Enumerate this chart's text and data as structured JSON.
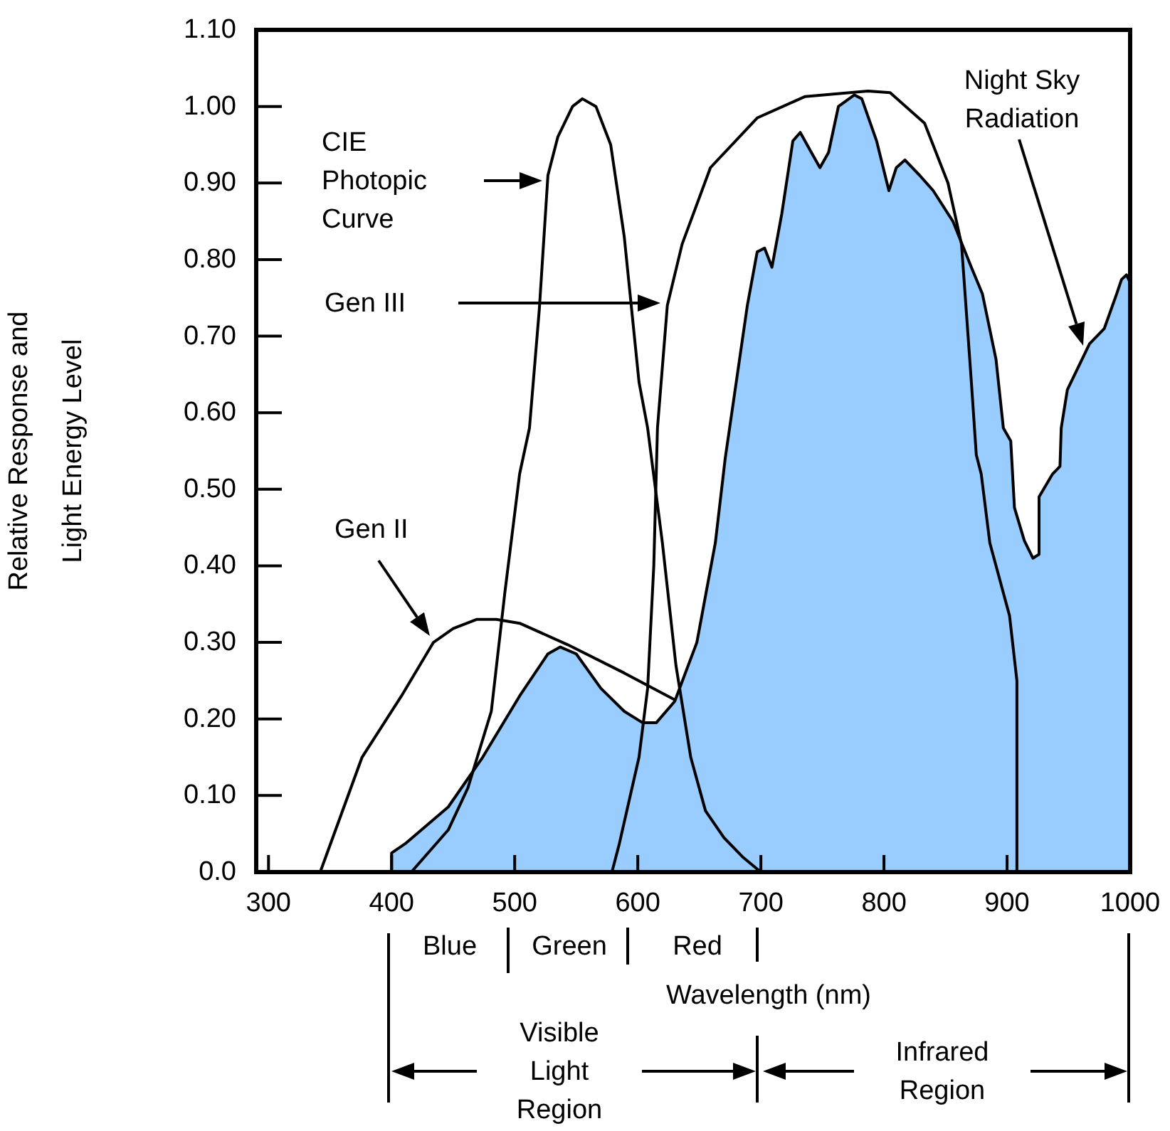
{
  "chart_data": {
    "type": "line",
    "xlabel": "Wavelength (nm)",
    "ylabel": "Relative Response and\nLight Energy Level",
    "xlim": [
      290,
      1000
    ],
    "ylim": [
      0,
      1.1
    ],
    "xticks": [
      300,
      400,
      500,
      600,
      700,
      800,
      900,
      1000
    ],
    "yticks": [
      {
        "value": 0,
        "label": "0.0"
      },
      {
        "value": 0.1,
        "label": "0.10"
      },
      {
        "value": 0.2,
        "label": "0.20"
      },
      {
        "value": 0.3,
        "label": "0.30"
      },
      {
        "value": 0.4,
        "label": "0.40"
      },
      {
        "value": 0.5,
        "label": "0.50"
      },
      {
        "value": 0.6,
        "label": "0.60"
      },
      {
        "value": 0.7,
        "label": "0.70"
      },
      {
        "value": 0.8,
        "label": "0.80"
      },
      {
        "value": 0.9,
        "label": "0.90"
      },
      {
        "value": 1.0,
        "label": "1.00"
      },
      {
        "value": 1.1,
        "label": "1.10"
      }
    ],
    "series": [
      {
        "type": "area",
        "color": "#99ccff",
        "x": [
          400,
          400,
          411,
          446,
          474,
          504,
          527,
          537,
          550,
          570,
          589,
          604,
          615,
          630,
          648,
          663,
          671,
          689,
          697,
          703,
          709,
          717,
          726,
          732,
          741,
          748,
          755,
          763,
          776,
          782,
          794,
          804,
          810,
          817,
          829,
          840,
          856,
          871,
          880,
          891,
          897,
          903,
          906,
          914,
          921,
          926,
          926,
          937,
          943,
          944,
          949,
          967,
          979,
          989,
          993,
          997,
          1000,
          1000
        ],
        "values": [
          0,
          0.025,
          0.037,
          0.085,
          0.15,
          0.23,
          0.285,
          0.294,
          0.285,
          0.24,
          0.21,
          0.195,
          0.195,
          0.223,
          0.3,
          0.43,
          0.54,
          0.74,
          0.81,
          0.815,
          0.79,
          0.86,
          0.955,
          0.966,
          0.94,
          0.92,
          0.94,
          1.0,
          1.015,
          1.01,
          0.955,
          0.89,
          0.92,
          0.93,
          0.91,
          0.89,
          0.85,
          0.79,
          0.755,
          0.67,
          0.58,
          0.563,
          0.476,
          0.433,
          0.41,
          0.415,
          0.49,
          0.52,
          0.53,
          0.58,
          0.63,
          0.69,
          0.71,
          0.755,
          0.774,
          0.78,
          0.77,
          0
        ]
      },
      {
        "color": "#000000",
        "x": [
          416,
          446,
          462,
          481,
          492,
          504,
          512,
          520,
          527,
          535,
          547,
          555,
          566,
          578,
          589,
          601,
          608,
          620,
          631,
          643,
          655,
          670,
          685,
          700
        ],
        "values": [
          0,
          0.055,
          0.11,
          0.21,
          0.365,
          0.52,
          0.58,
          0.735,
          0.91,
          0.96,
          1.0,
          1.01,
          1.0,
          0.95,
          0.83,
          0.64,
          0.58,
          0.43,
          0.27,
          0.15,
          0.08,
          0.045,
          0.02,
          0
        ]
      },
      {
        "color": "#000000",
        "x": [
          579,
          585,
          601,
          608,
          613,
          616,
          624,
          636,
          659,
          697,
          736,
          787,
          805,
          833,
          852,
          863,
          871,
          875,
          879,
          886,
          902,
          908,
          908
        ],
        "values": [
          0,
          0.037,
          0.15,
          0.24,
          0.4,
          0.58,
          0.74,
          0.82,
          0.92,
          0.985,
          1.013,
          1.02,
          1.018,
          0.978,
          0.9,
          0.82,
          0.64,
          0.545,
          0.52,
          0.43,
          0.335,
          0.25,
          0
        ]
      },
      {
        "color": "#000000",
        "x": [
          342,
          376,
          408,
          434,
          450,
          469,
          485,
          504,
          543,
          589,
          630
        ],
        "values": [
          0,
          0.15,
          0.23,
          0.3,
          0.318,
          0.33,
          0.33,
          0.325,
          0.297,
          0.26,
          0.225
        ]
      }
    ],
    "annotations": [
      "CIE\nPhotopic\nCurve",
      "Gen III",
      "Gen II",
      "Night Sky\nRadiation",
      "Blue",
      "Green",
      "Red",
      "Visible\nLight\nRegion",
      "Infrared\nRegion"
    ]
  }
}
